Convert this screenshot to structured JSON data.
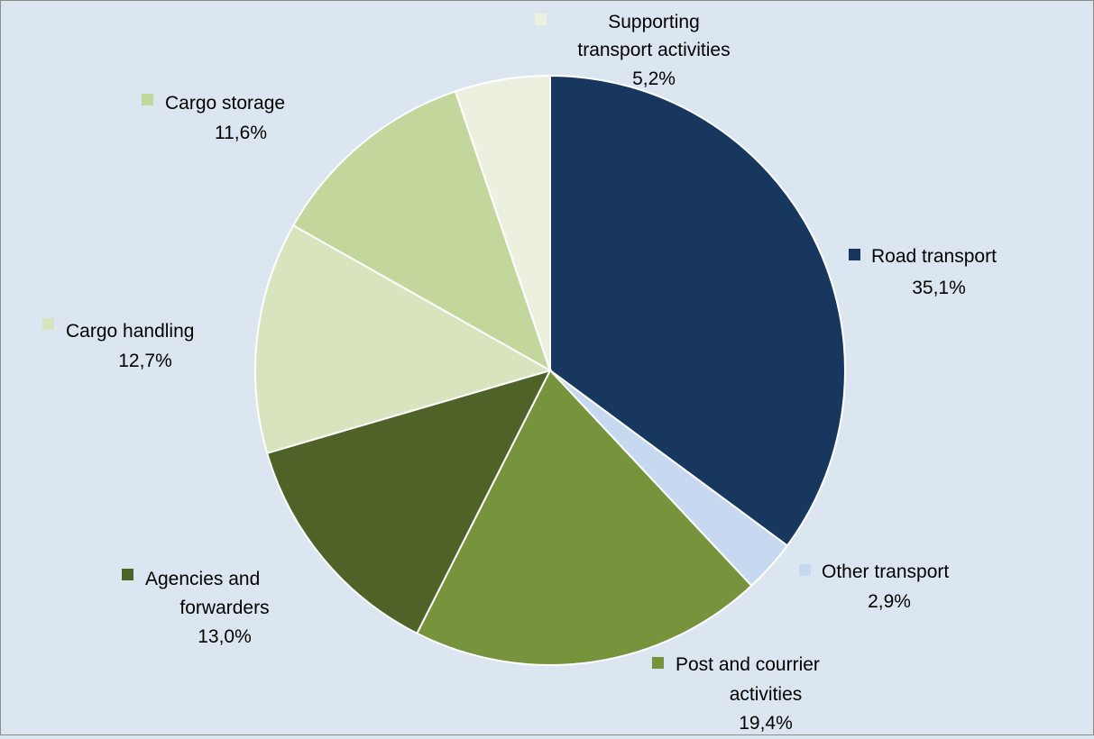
{
  "chart_data": {
    "type": "pie",
    "title": "",
    "start_angle_deg": 0,
    "direction": "clockwise",
    "slices": [
      {
        "label": "Road transport",
        "line1": "Road transport",
        "line2": "",
        "value": 35.1,
        "value_text": "35,1%",
        "color": "#17375e"
      },
      {
        "label": "Other transport",
        "line1": "Other transport",
        "line2": "",
        "value": 2.9,
        "value_text": "2,9%",
        "color": "#c6d9f1"
      },
      {
        "label": "Post and courrier activities",
        "line1": "Post and courrier",
        "line2": "activities",
        "value": 19.4,
        "value_text": "19,4%",
        "color": "#77933c"
      },
      {
        "label": "Agencies and forwarders",
        "line1": "Agencies and",
        "line2": "forwarders",
        "value": 13.0,
        "value_text": "13,0%",
        "color": "#4f6228"
      },
      {
        "label": "Cargo handling",
        "line1": "Cargo handling",
        "line2": "",
        "value": 12.7,
        "value_text": "12,7%",
        "color": "#d7e4bd"
      },
      {
        "label": "Cargo storage",
        "line1": "Cargo storage",
        "line2": "",
        "value": 11.6,
        "value_text": "11,6%",
        "color": "#c3d69b"
      },
      {
        "label": "Supporting transport activities",
        "line1": "Supporting",
        "line2": "transport activities",
        "value": 5.2,
        "value_text": "5,2%",
        "color": "#ebf1de"
      }
    ]
  }
}
